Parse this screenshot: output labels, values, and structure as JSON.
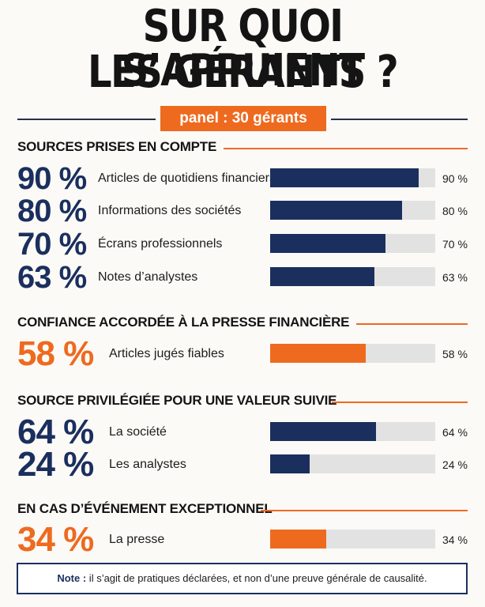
{
  "title": {
    "line1": "SUR QUOI S’APPUIENT",
    "line2": "LES GÉRANTS ?"
  },
  "panel": {
    "label": "panel : 30 gérants"
  },
  "colors": {
    "navy": "#1b2f5e",
    "orange": "#ee6a1f",
    "track": "#e2e2e2"
  },
  "chart_data": [
    {
      "type": "bar",
      "title": "SOURCES PRISES EN COMPTE",
      "categories": [
        "Articles de quotidiens financiers",
        "Informations des sociétés",
        "Écrans professionnels",
        "Notes d’analystes"
      ],
      "values": [
        90,
        80,
        70,
        63
      ],
      "big_labels": [
        "90 %",
        "80 %",
        "70 %",
        "63 %"
      ],
      "value_labels": [
        "90 %",
        "80 %",
        "70 %",
        "63 %"
      ],
      "color": "#1b2f5e",
      "ylim": [
        0,
        100
      ]
    },
    {
      "type": "bar",
      "title": "CONFIANCE ACCORDÉE À LA PRESSE FINANCIÈRE",
      "categories": [
        "Articles jugés fiables"
      ],
      "values": [
        58
      ],
      "big_labels": [
        "58 %"
      ],
      "value_labels": [
        "58 %"
      ],
      "color": "#ee6a1f",
      "ylim": [
        0,
        100
      ]
    },
    {
      "type": "bar",
      "title": "SOURCE PRIVILÉGIÉE POUR UNE VALEUR SUIVIE",
      "categories": [
        "La société",
        "Les analystes"
      ],
      "values": [
        64,
        24
      ],
      "big_labels": [
        "64 %",
        "24 %"
      ],
      "value_labels": [
        "64 %",
        "24 %"
      ],
      "color": "#1b2f5e",
      "ylim": [
        0,
        100
      ]
    },
    {
      "type": "bar",
      "title": "EN CAS D’ÉVÉNEMENT EXCEPTIONNEL",
      "categories": [
        "La presse"
      ],
      "values": [
        34
      ],
      "big_labels": [
        "34 %"
      ],
      "value_labels": [
        "34 %"
      ],
      "color": "#ee6a1f",
      "ylim": [
        0,
        100
      ]
    }
  ],
  "note": {
    "prefix": "Note :",
    "text": " il s’agit de pratiques déclarées, et non d’une preuve générale de causalité."
  }
}
